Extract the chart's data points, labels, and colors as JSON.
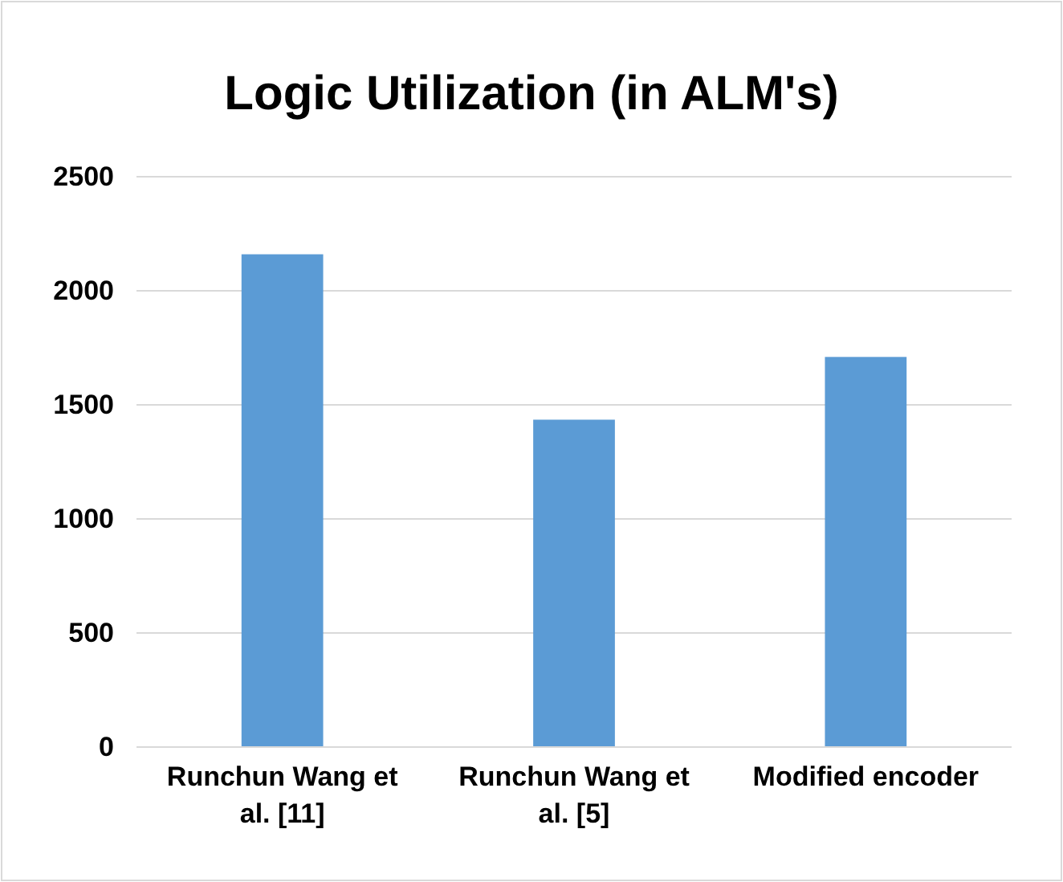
{
  "chart_data": {
    "type": "bar",
    "title": "Logic Utilization  (in ALM's)",
    "categories": [
      "Runchun Wang et al. [11]",
      "Runchun Wang et al. [5]",
      "Modified encoder"
    ],
    "values": [
      2160,
      1435,
      1710
    ],
    "color": "#5b9bd5",
    "ylim": [
      0,
      2500
    ],
    "yticks": [
      0,
      500,
      1000,
      1500,
      2000,
      2500
    ],
    "grid": "y"
  }
}
